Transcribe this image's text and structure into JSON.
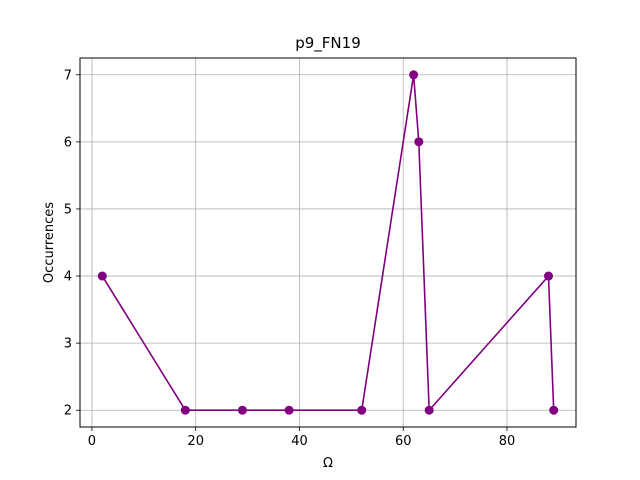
{
  "chart_data": {
    "type": "line",
    "title": "p9_FN19",
    "xlabel": "Ω",
    "ylabel": "Occurrences",
    "xlim": [
      -2.3,
      93.3
    ],
    "ylim": [
      1.75,
      7.25
    ],
    "xticks": [
      0,
      20,
      40,
      60,
      80
    ],
    "yticks": [
      2,
      3,
      4,
      5,
      6,
      7
    ],
    "grid": true,
    "series": [
      {
        "color": "#800080",
        "marker": "circle",
        "x": [
          2,
          18,
          29,
          38,
          52,
          62,
          63,
          65,
          88,
          89
        ],
        "y": [
          4,
          2,
          2,
          2,
          2,
          7,
          6,
          2,
          4,
          2
        ]
      }
    ]
  }
}
